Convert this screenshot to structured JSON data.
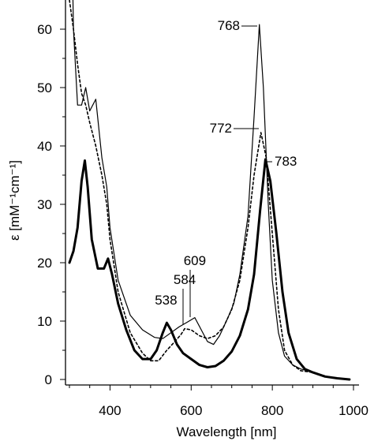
{
  "chart_data": {
    "type": "line",
    "xlabel": "Wavelength [nm]",
    "ylabel": "ε [mM⁻¹cm⁻¹]",
    "xlim": [
      290,
      1000
    ],
    "ylim": [
      -1,
      65
    ],
    "x_ticks": [
      400,
      600,
      800,
      1000
    ],
    "y_ticks": [
      0,
      10,
      20,
      30,
      40,
      50,
      60
    ],
    "grid": false,
    "legend": "none",
    "annotations": [
      {
        "label": "768",
        "x": 768,
        "y": 60.8
      },
      {
        "label": "772",
        "x": 772,
        "y": 42.3
      },
      {
        "label": "783",
        "x": 783,
        "y": 37.7
      },
      {
        "label": "609",
        "x": 609,
        "y": 10.6
      },
      {
        "label": "584",
        "x": 584,
        "y": 8.7
      },
      {
        "label": "538",
        "x": 538,
        "y": 7.4
      }
    ],
    "series": [
      {
        "style": "thin-solid",
        "points": [
          [
            300,
            100
          ],
          [
            310,
            60
          ],
          [
            320,
            47
          ],
          [
            330,
            47
          ],
          [
            340,
            50
          ],
          [
            350,
            46
          ],
          [
            365,
            48
          ],
          [
            380,
            38
          ],
          [
            392,
            33
          ],
          [
            400,
            26
          ],
          [
            420,
            17
          ],
          [
            450,
            11
          ],
          [
            480,
            8.5
          ],
          [
            510,
            7.2
          ],
          [
            530,
            7.0
          ],
          [
            550,
            8.0
          ],
          [
            570,
            9.0
          ],
          [
            590,
            9.8
          ],
          [
            609,
            10.6
          ],
          [
            625,
            8.5
          ],
          [
            640,
            6.5
          ],
          [
            655,
            6.0
          ],
          [
            670,
            7.5
          ],
          [
            690,
            10.5
          ],
          [
            705,
            13
          ],
          [
            720,
            18
          ],
          [
            740,
            28
          ],
          [
            755,
            45
          ],
          [
            768,
            60.8
          ],
          [
            778,
            50
          ],
          [
            790,
            30
          ],
          [
            800,
            17
          ],
          [
            815,
            8
          ],
          [
            830,
            4
          ],
          [
            850,
            2.5
          ],
          [
            870,
            1.8
          ],
          [
            900,
            1.2
          ],
          [
            930,
            0.5
          ],
          [
            960,
            0.2
          ],
          [
            990,
            0
          ]
        ]
      },
      {
        "style": "dashed",
        "points": [
          [
            300,
            65
          ],
          [
            310,
            60
          ],
          [
            320,
            54
          ],
          [
            330,
            49
          ],
          [
            340,
            47
          ],
          [
            350,
            44
          ],
          [
            365,
            40
          ],
          [
            380,
            35
          ],
          [
            392,
            30
          ],
          [
            400,
            24
          ],
          [
            420,
            15
          ],
          [
            450,
            8
          ],
          [
            480,
            4.5
          ],
          [
            500,
            3.2
          ],
          [
            520,
            3.2
          ],
          [
            540,
            5.0
          ],
          [
            560,
            6.5
          ],
          [
            575,
            7.7
          ],
          [
            584,
            8.7
          ],
          [
            600,
            8.5
          ],
          [
            620,
            7.5
          ],
          [
            640,
            7.0
          ],
          [
            660,
            7.5
          ],
          [
            680,
            9.0
          ],
          [
            700,
            12
          ],
          [
            720,
            17
          ],
          [
            740,
            26
          ],
          [
            755,
            35
          ],
          [
            772,
            42.3
          ],
          [
            785,
            38
          ],
          [
            800,
            25
          ],
          [
            815,
            12
          ],
          [
            830,
            5
          ],
          [
            850,
            2.5
          ],
          [
            870,
            1.5
          ],
          [
            900,
            1.2
          ],
          [
            930,
            0.6
          ],
          [
            960,
            0.2
          ],
          [
            990,
            0
          ]
        ]
      },
      {
        "style": "thick-solid",
        "points": [
          [
            300,
            20
          ],
          [
            310,
            22
          ],
          [
            320,
            26
          ],
          [
            330,
            34
          ],
          [
            338,
            37.5
          ],
          [
            345,
            33
          ],
          [
            355,
            24
          ],
          [
            370,
            19
          ],
          [
            385,
            19
          ],
          [
            395,
            20.7
          ],
          [
            405,
            18
          ],
          [
            420,
            13
          ],
          [
            440,
            8.5
          ],
          [
            460,
            5
          ],
          [
            480,
            3.5
          ],
          [
            500,
            3.5
          ],
          [
            515,
            5.0
          ],
          [
            530,
            8.0
          ],
          [
            540,
            9.7
          ],
          [
            550,
            8.5
          ],
          [
            565,
            6.0
          ],
          [
            580,
            4.5
          ],
          [
            600,
            3.5
          ],
          [
            620,
            2.5
          ],
          [
            640,
            2.1
          ],
          [
            660,
            2.3
          ],
          [
            680,
            3.2
          ],
          [
            700,
            4.8
          ],
          [
            720,
            7.5
          ],
          [
            740,
            12
          ],
          [
            755,
            18
          ],
          [
            770,
            29
          ],
          [
            783,
            37.7
          ],
          [
            795,
            34
          ],
          [
            810,
            25
          ],
          [
            825,
            15
          ],
          [
            840,
            8
          ],
          [
            860,
            3.5
          ],
          [
            880,
            1.8
          ],
          [
            900,
            1.2
          ],
          [
            930,
            0.5
          ],
          [
            960,
            0.2
          ],
          [
            990,
            0
          ]
        ]
      }
    ]
  }
}
